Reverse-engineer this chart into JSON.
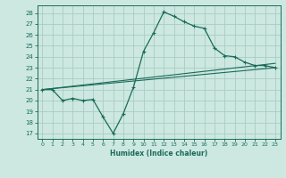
{
  "xlabel": "Humidex (Indice chaleur)",
  "bg_color": "#cce8e0",
  "grid_color": "#aaccC4",
  "line_color": "#1a6b5a",
  "xlim": [
    -0.5,
    23.5
  ],
  "ylim": [
    16.5,
    28.7
  ],
  "xticks": [
    0,
    1,
    2,
    3,
    4,
    5,
    6,
    7,
    8,
    9,
    10,
    11,
    12,
    13,
    14,
    15,
    16,
    17,
    18,
    19,
    20,
    21,
    22,
    23
  ],
  "yticks": [
    17,
    18,
    19,
    20,
    21,
    22,
    23,
    24,
    25,
    26,
    27,
    28
  ],
  "line1_x": [
    0,
    1,
    2,
    3,
    4,
    5,
    6,
    7,
    8,
    9,
    10,
    11,
    12,
    13,
    14,
    15,
    16,
    17,
    18,
    19,
    20,
    21,
    22,
    23
  ],
  "line1_y": [
    21.0,
    21.0,
    20.0,
    20.2,
    20.0,
    20.1,
    18.5,
    17.0,
    18.8,
    21.2,
    24.5,
    26.2,
    28.1,
    27.7,
    27.2,
    26.8,
    26.6,
    24.8,
    24.1,
    24.0,
    23.5,
    23.2,
    23.2,
    23.0
  ],
  "line2_x": [
    0,
    23
  ],
  "line2_y": [
    21.0,
    23.0
  ],
  "line3_x": [
    0,
    23
  ],
  "line3_y": [
    21.0,
    23.4
  ],
  "figsize": [
    3.2,
    2.0
  ],
  "dpi": 100
}
